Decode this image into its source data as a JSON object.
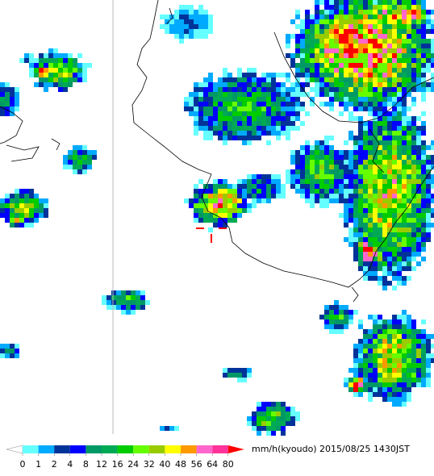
{
  "legend": {
    "ticks": [
      0,
      1,
      2,
      4,
      8,
      12,
      16,
      24,
      32,
      40,
      48,
      56,
      64,
      80
    ],
    "colors": [
      "#66ffff",
      "#00aaff",
      "#003399",
      "#0000ff",
      "#009966",
      "#00aa55",
      "#00cc00",
      "#66ff00",
      "#99cc00",
      "#ffff00",
      "#ff9900",
      "#ff66cc",
      "#ff3399"
    ],
    "under_color": "#ffffff",
    "over_color": "#ff0000",
    "unit": "mm/h(kyoudo)"
  },
  "timestamp": "2015/08/25 1430JST"
}
